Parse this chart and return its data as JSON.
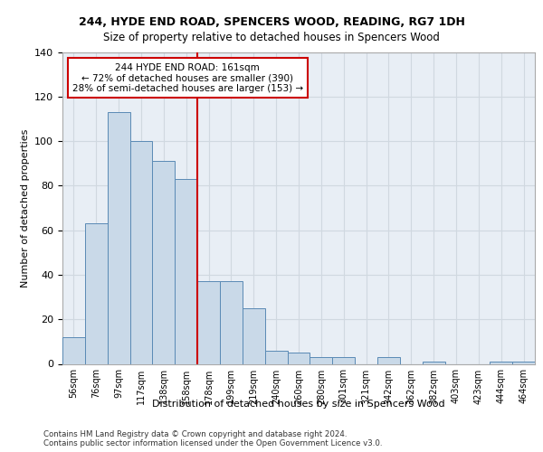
{
  "title1": "244, HYDE END ROAD, SPENCERS WOOD, READING, RG7 1DH",
  "title2": "Size of property relative to detached houses in Spencers Wood",
  "xlabel": "Distribution of detached houses by size in Spencers Wood",
  "ylabel": "Number of detached properties",
  "bar_labels": [
    "56sqm",
    "76sqm",
    "97sqm",
    "117sqm",
    "138sqm",
    "158sqm",
    "178sqm",
    "199sqm",
    "219sqm",
    "240sqm",
    "260sqm",
    "280sqm",
    "301sqm",
    "321sqm",
    "342sqm",
    "362sqm",
    "382sqm",
    "403sqm",
    "423sqm",
    "444sqm",
    "464sqm"
  ],
  "bar_values": [
    12,
    63,
    113,
    100,
    91,
    83,
    37,
    37,
    25,
    6,
    5,
    3,
    3,
    0,
    3,
    0,
    1,
    0,
    0,
    1,
    1
  ],
  "bar_color": "#c9d9e8",
  "bar_edge_color": "#5a8ab5",
  "red_line_color": "#cc0000",
  "property_label": "244 HYDE END ROAD: 161sqm",
  "annotation_line1": "← 72% of detached houses are smaller (390)",
  "annotation_line2": "28% of semi-detached houses are larger (153) →",
  "annotation_box_color": "#ffffff",
  "annotation_box_edge": "#cc0000",
  "ylim": [
    0,
    140
  ],
  "yticks": [
    0,
    20,
    40,
    60,
    80,
    100,
    120,
    140
  ],
  "grid_color": "#d0d8e0",
  "bg_color": "#e8eef5",
  "footer1": "Contains HM Land Registry data © Crown copyright and database right 2024.",
  "footer2": "Contains public sector information licensed under the Open Government Licence v3.0."
}
